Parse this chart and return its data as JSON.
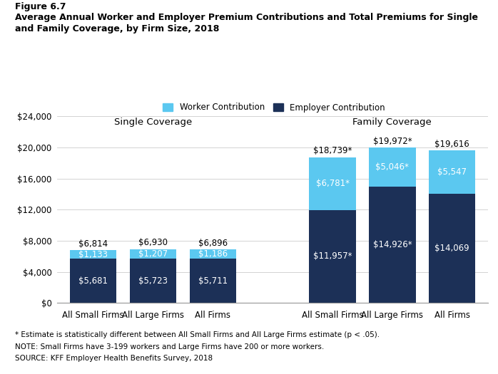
{
  "figure_label": "Figure 6.7",
  "title_line1": "Average Annual Worker and Employer Premium Contributions and Total Premiums for Single",
  "title_line2": "and Family Coverage, by Firm Size, 2018",
  "single_coverage": {
    "label": "Single Coverage",
    "categories": [
      "All Small Firms",
      "All Large Firms",
      "All Firms"
    ],
    "employer": [
      5681,
      5723,
      5711
    ],
    "worker": [
      1133,
      1207,
      1186
    ],
    "total_labels": [
      "$6,814",
      "$6,930",
      "$6,896"
    ],
    "employer_labels": [
      "$5,681",
      "$5,723",
      "$5,711"
    ],
    "worker_labels": [
      "$1,133",
      "$1,207",
      "$1,186"
    ]
  },
  "family_coverage": {
    "label": "Family Coverage",
    "categories": [
      "All Small Firms",
      "All Large Firms",
      "All Firms"
    ],
    "employer": [
      11957,
      14926,
      14069
    ],
    "worker": [
      6781,
      5046,
      5547
    ],
    "total_labels": [
      "$18,739*",
      "$19,972*",
      "$19,616"
    ],
    "employer_labels": [
      "$11,957*",
      "$14,926*",
      "$14,069"
    ],
    "worker_labels": [
      "$6,781*",
      "$5,046*",
      "$5,547"
    ]
  },
  "colors": {
    "employer": "#1c3057",
    "worker": "#5bc8f0",
    "background": "#ffffff"
  },
  "ylim": [
    0,
    25000
  ],
  "yticks": [
    0,
    4000,
    8000,
    12000,
    16000,
    20000,
    24000
  ],
  "ytick_labels": [
    "$0",
    "$4,000",
    "$8,000",
    "$12,000",
    "$16,000",
    "$20,000",
    "$24,000"
  ],
  "legend_labels": [
    "Worker Contribution",
    "Employer Contribution"
  ],
  "footnote1": "* Estimate is statistically different between All Small Firms and All Large Firms estimate (p < .05).",
  "footnote2": "NOTE: Small Firms have 3-199 workers and Large Firms have 200 or more workers.",
  "footnote3": "SOURCE: KFF Employer Health Benefits Survey, 2018"
}
